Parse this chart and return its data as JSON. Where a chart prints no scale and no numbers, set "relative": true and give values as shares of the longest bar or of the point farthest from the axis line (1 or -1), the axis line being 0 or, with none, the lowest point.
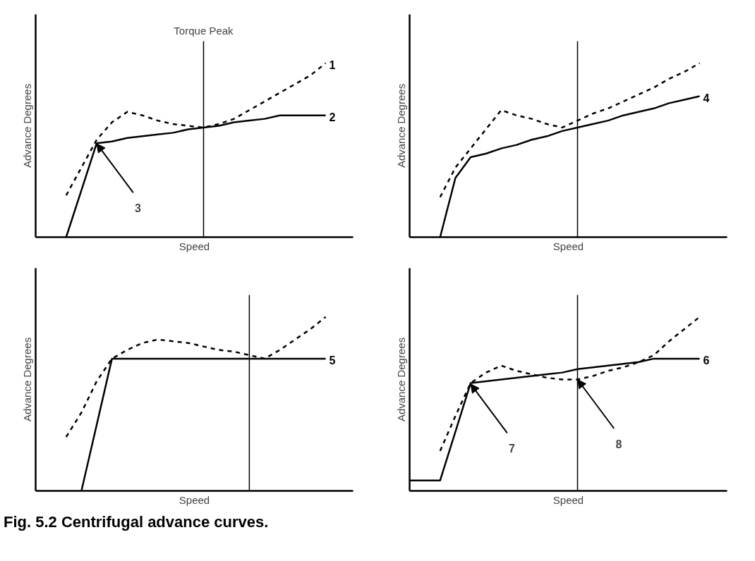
{
  "chart_data": [
    {
      "type": "line",
      "relative": true,
      "xlabel": "Speed",
      "ylabel": "Advance Degrees",
      "legend": false,
      "grid": false,
      "categories": [
        null,
        null,
        null,
        null,
        null,
        null,
        null,
        null,
        null,
        null,
        null,
        null,
        null,
        null,
        null,
        null,
        null,
        null,
        null,
        null,
        null
      ],
      "series": [
        {
          "name": "1",
          "color": "#000000",
          "line_style": "dashed",
          "values": [
            null,
            null,
            0.24,
            0.4,
            0.56,
            0.66,
            0.72,
            0.7,
            0.67,
            0.65,
            0.64,
            0.63,
            0.65,
            0.68,
            0.73,
            0.78,
            0.83,
            0.88,
            0.93,
            1.0,
            null
          ]
        },
        {
          "name": "2",
          "color": "#000000",
          "line_style": "solid",
          "values": [
            null,
            null,
            0,
            0.27,
            0.54,
            0.55,
            0.57,
            0.58,
            0.59,
            0.6,
            0.62,
            0.63,
            0.64,
            0.66,
            0.67,
            0.68,
            0.7,
            0.7,
            0.7,
            0.7,
            null
          ]
        }
      ],
      "annotations": [
        "Torque Peak",
        "3"
      ]
    },
    {
      "type": "line",
      "relative": true,
      "xlabel": "Speed",
      "ylabel": "Advance Degrees",
      "legend": false,
      "grid": false,
      "categories": [
        null,
        null,
        null,
        null,
        null,
        null,
        null,
        null,
        null,
        null,
        null,
        null,
        null,
        null,
        null,
        null,
        null,
        null,
        null,
        null,
        null
      ],
      "series": [
        {
          "color": "#000000",
          "line_style": "dashed",
          "values": [
            null,
            null,
            0.23,
            0.4,
            0.51,
            0.62,
            0.73,
            0.7,
            0.68,
            0.65,
            0.63,
            0.67,
            0.71,
            0.74,
            0.78,
            0.82,
            0.86,
            0.91,
            0.95,
            1.0,
            null
          ]
        },
        {
          "name": "4",
          "color": "#000000",
          "line_style": "solid",
          "values": [
            null,
            null,
            0,
            0.34,
            0.46,
            0.48,
            0.51,
            0.53,
            0.56,
            0.58,
            0.61,
            0.63,
            0.65,
            0.67,
            0.7,
            0.72,
            0.74,
            0.77,
            0.79,
            0.81,
            null
          ]
        }
      ]
    },
    {
      "type": "line",
      "relative": true,
      "xlabel": "Speed",
      "ylabel": "Advance Degrees",
      "legend": false,
      "grid": false,
      "categories": [
        null,
        null,
        null,
        null,
        null,
        null,
        null,
        null,
        null,
        null,
        null,
        null,
        null,
        null,
        null,
        null,
        null,
        null,
        null,
        null,
        null
      ],
      "series": [
        {
          "color": "#000000",
          "line_style": "dashed",
          "values": [
            null,
            null,
            0.31,
            0.45,
            0.63,
            0.76,
            0.81,
            0.85,
            0.87,
            0.86,
            0.85,
            0.83,
            0.81,
            0.8,
            0.78,
            0.76,
            0.81,
            0.87,
            0.93,
            1.0,
            null
          ]
        },
        {
          "name": "5",
          "color": "#000000",
          "line_style": "solid",
          "values": [
            null,
            null,
            null,
            0,
            0.38,
            0.76,
            0.76,
            0.76,
            0.76,
            0.76,
            0.76,
            0.76,
            0.76,
            0.76,
            0.76,
            0.76,
            0.76,
            0.76,
            0.76,
            0.76,
            null
          ]
        }
      ]
    },
    {
      "type": "line",
      "relative": true,
      "xlabel": "Speed",
      "ylabel": "Advance Degrees",
      "legend": false,
      "grid": false,
      "categories": [
        null,
        null,
        null,
        null,
        null,
        null,
        null,
        null,
        null,
        null,
        null,
        null,
        null,
        null,
        null,
        null,
        null,
        null,
        null,
        null,
        null
      ],
      "series": [
        {
          "color": "#000000",
          "line_style": "dashed",
          "values": [
            null,
            null,
            0.23,
            0.43,
            0.62,
            0.68,
            0.72,
            0.69,
            0.67,
            0.65,
            0.64,
            0.64,
            0.66,
            0.69,
            0.71,
            0.74,
            0.78,
            0.86,
            0.93,
            1.0,
            null
          ]
        },
        {
          "name": "6",
          "color": "#000000",
          "line_style": "solid",
          "values": [
            0.06,
            0.06,
            0.06,
            0.34,
            0.62,
            0.63,
            0.64,
            0.65,
            0.66,
            0.67,
            0.68,
            0.7,
            0.71,
            0.72,
            0.73,
            0.74,
            0.76,
            0.76,
            0.76,
            0.76,
            null
          ]
        }
      ],
      "annotations": [
        "7",
        "8",
        "Fig. 5.2 Centrifugal advance curves."
      ]
    }
  ]
}
